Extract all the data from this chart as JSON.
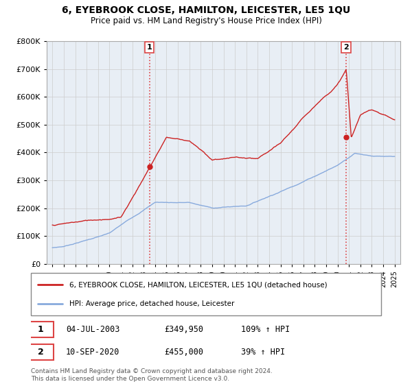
{
  "title": "6, EYEBROOK CLOSE, HAMILTON, LEICESTER, LE5 1QU",
  "subtitle": "Price paid vs. HM Land Registry's House Price Index (HPI)",
  "red_label": "6, EYEBROOK CLOSE, HAMILTON, LEICESTER, LE5 1QU (detached house)",
  "blue_label": "HPI: Average price, detached house, Leicester",
  "footnote1": "Contains HM Land Registry data © Crown copyright and database right 2024.",
  "footnote2": "This data is licensed under the Open Government Licence v3.0.",
  "sale1_label": "1",
  "sale1_date": "04-JUL-2003",
  "sale1_price": "£349,950",
  "sale1_hpi": "109% ↑ HPI",
  "sale1_year": 2003.5,
  "sale1_value": 349950,
  "sale2_label": "2",
  "sale2_date": "10-SEP-2020",
  "sale2_price": "£455,000",
  "sale2_hpi": "39% ↑ HPI",
  "sale2_year": 2020.75,
  "sale2_value": 455000,
  "ylim": [
    0,
    800000
  ],
  "yticks": [
    0,
    100000,
    200000,
    300000,
    400000,
    500000,
    600000,
    700000,
    800000
  ],
  "xlim_start": 1994.5,
  "xlim_end": 2025.5,
  "red_color": "#cc2222",
  "blue_color": "#88aadd",
  "vline_color": "#dd4444",
  "chart_bg": "#e8eef5",
  "background_color": "#ffffff",
  "grid_color": "#cccccc"
}
